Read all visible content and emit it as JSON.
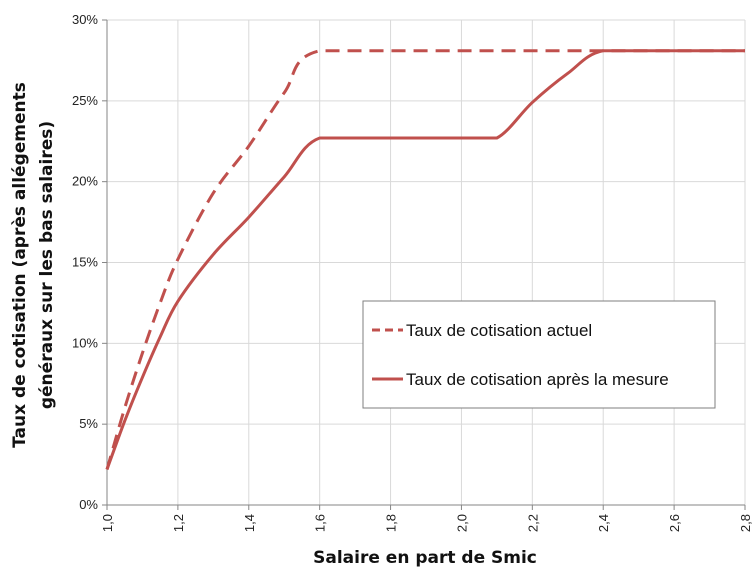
{
  "chart_data": {
    "type": "line",
    "xlabel": "Salaire en part de Smic",
    "ylabel_lines": [
      "Taux de cotisation (après allégements",
      "généraux sur les bas salaires)"
    ],
    "x_ticks": [
      "1,0",
      "1,2",
      "1,4",
      "1,6",
      "1,8",
      "2,0",
      "2,2",
      "2,4",
      "2,6",
      "2,8"
    ],
    "y_ticks": [
      "0%",
      "5%",
      "10%",
      "15%",
      "20%",
      "25%",
      "30%"
    ],
    "xlim": [
      1.0,
      2.8
    ],
    "ylim": [
      0,
      30
    ],
    "grid": true,
    "legend_position": "center-right",
    "series": [
      {
        "name": "Taux de cotisation actuel",
        "style": "dashed",
        "color": "#c0504d",
        "points": [
          [
            1.0,
            2.2
          ],
          [
            1.05,
            6.0
          ],
          [
            1.1,
            9.4
          ],
          [
            1.15,
            12.5
          ],
          [
            1.2,
            15.2
          ],
          [
            1.3,
            19.3
          ],
          [
            1.4,
            22.2
          ],
          [
            1.5,
            25.5
          ],
          [
            1.6,
            28.1
          ],
          [
            2.0,
            28.1
          ],
          [
            2.4,
            28.1
          ],
          [
            2.8,
            28.1
          ]
        ]
      },
      {
        "name": "Taux de cotisation après la mesure",
        "style": "solid",
        "color": "#c0504d",
        "points": [
          [
            1.0,
            2.2
          ],
          [
            1.05,
            5.2
          ],
          [
            1.1,
            7.9
          ],
          [
            1.15,
            10.4
          ],
          [
            1.2,
            12.6
          ],
          [
            1.3,
            15.5
          ],
          [
            1.4,
            17.8
          ],
          [
            1.5,
            20.3
          ],
          [
            1.6,
            22.7
          ],
          [
            1.8,
            22.7
          ],
          [
            2.0,
            22.7
          ],
          [
            2.1,
            22.7
          ],
          [
            2.2,
            24.9
          ],
          [
            2.3,
            26.7
          ],
          [
            2.4,
            28.1
          ],
          [
            2.6,
            28.1
          ],
          [
            2.8,
            28.1
          ]
        ]
      }
    ]
  }
}
